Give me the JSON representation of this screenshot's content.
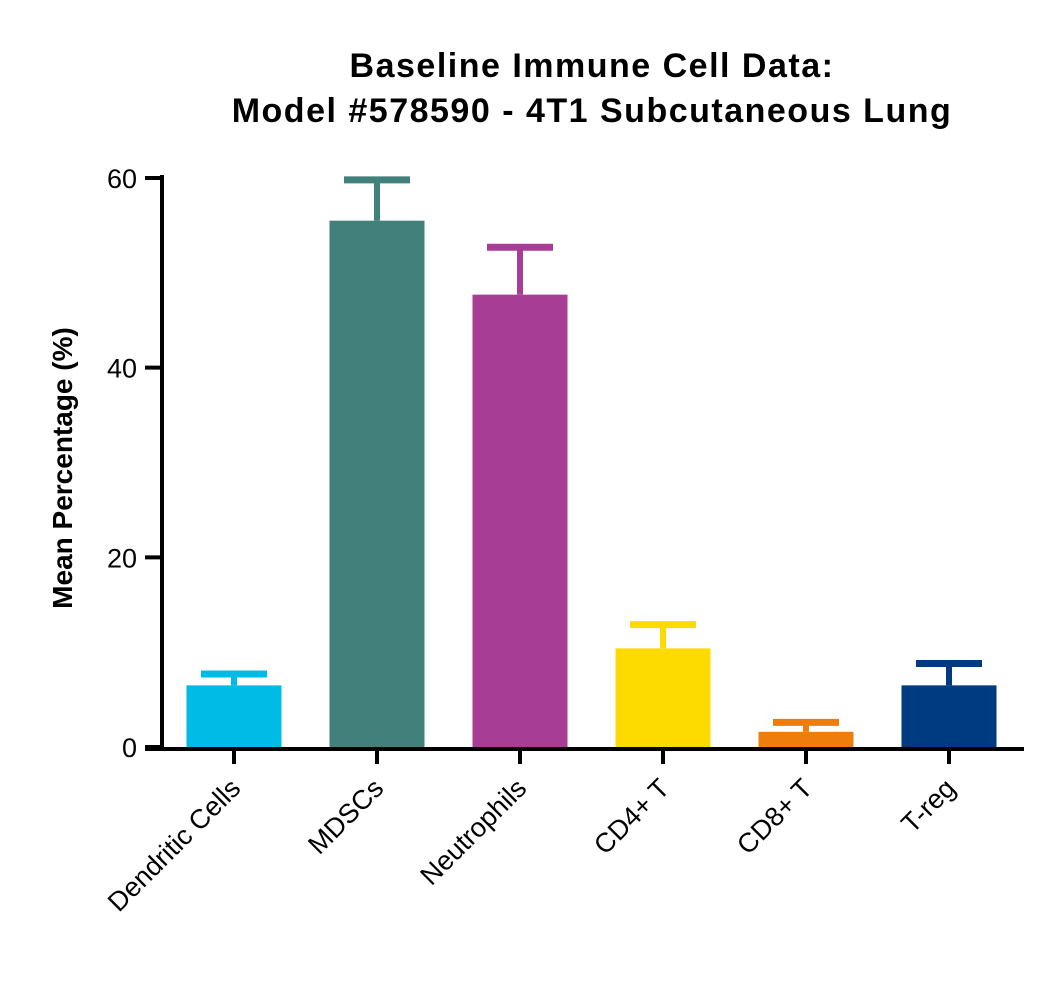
{
  "chart_data": {
    "type": "bar",
    "title": "Baseline Immune  Cell Data:",
    "subtitle": "Model #578590 - 4T1 Subcutaneous Lung",
    "xlabel": "",
    "ylabel": "Mean Percentage (%)",
    "ylim": [
      0,
      60
    ],
    "yticks": [
      "0",
      "20",
      "40",
      "60"
    ],
    "grid": false,
    "categories": [
      "Dendritic Cells",
      "MDSCs",
      "Neutrophils",
      "CD4+ T",
      "CD8+ T",
      "T-reg"
    ],
    "values": [
      6.5,
      55.5,
      47.7,
      10.4,
      1.6,
      6.5
    ],
    "error_upper": [
      1.2,
      4.3,
      5.0,
      2.5,
      1.0,
      2.3
    ],
    "colors": [
      "#00BBE6",
      "#42807C",
      "#A83D96",
      "#FDDB00",
      "#EE7D0B",
      "#003A80"
    ]
  }
}
